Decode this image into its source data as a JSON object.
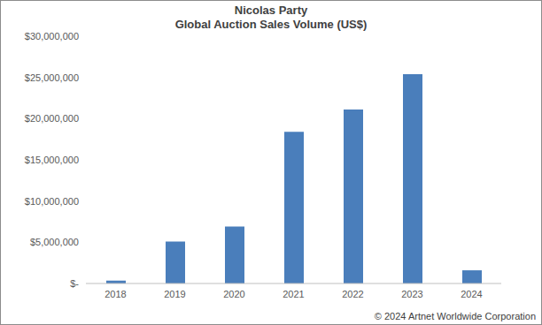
{
  "chart_data": {
    "type": "bar",
    "title": "Nicolas Party",
    "subtitle": "Global Auction Sales Volume (US$)",
    "categories": [
      "2018",
      "2019",
      "2020",
      "2021",
      "2022",
      "2023",
      "2024"
    ],
    "values": [
      350000,
      5100000,
      6900000,
      18400000,
      21100000,
      25400000,
      1600000
    ],
    "color": "#4a7ebb",
    "ylim": [
      0,
      30000000
    ],
    "yticks": [
      {
        "value": 0,
        "label": "$-"
      },
      {
        "value": 5000000,
        "label": "$5,000,000"
      },
      {
        "value": 10000000,
        "label": "$10,000,000"
      },
      {
        "value": 15000000,
        "label": "$15,000,000"
      },
      {
        "value": 20000000,
        "label": "$20,000,000"
      },
      {
        "value": 25000000,
        "label": "$25,000,000"
      },
      {
        "value": 30000000,
        "label": "$30,000,000"
      }
    ],
    "grid": false,
    "annotations": [
      "© 2024 Artnet Worldwide Corporation"
    ]
  }
}
